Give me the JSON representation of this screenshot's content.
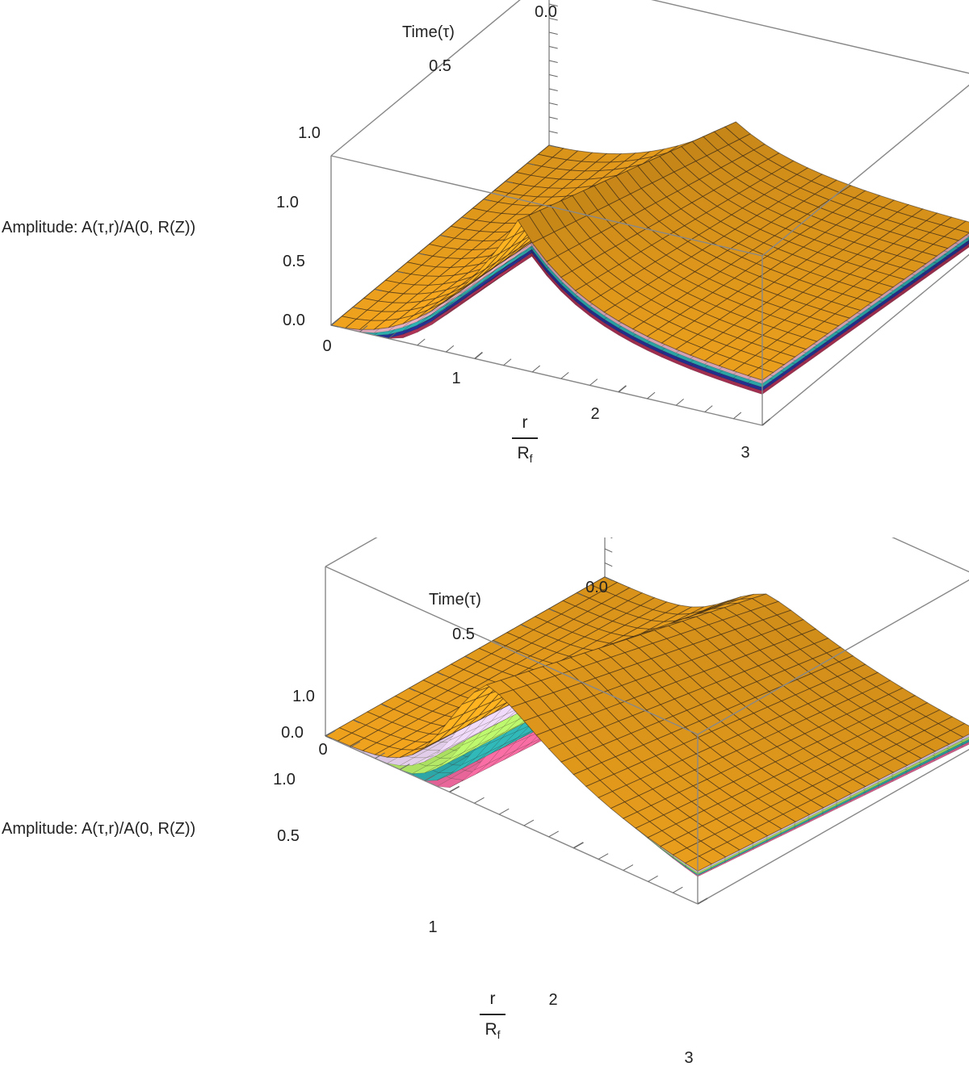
{
  "chart_data": [
    {
      "type": "surface3d",
      "ylabel": "Time(τ)",
      "zlabel": "Amplitude: A(τ,r)/A(0, R(Z))",
      "xlabel_num": "r",
      "xlabel_den": "R",
      "xlabel_den_sub": "f",
      "x_ticks": [
        "0",
        "1",
        "2",
        "3"
      ],
      "y_ticks": [
        "0.0",
        "0.5",
        "1.0"
      ],
      "z_ticks": [
        "0.0",
        "0.5",
        "1.0"
      ],
      "xlim": [
        0,
        3
      ],
      "ylim": [
        0,
        1
      ],
      "zlim": [
        0,
        1.2
      ],
      "colors": [
        "#ffad1f",
        "#e8b1c4",
        "#2fb3b3",
        "#27339a",
        "#b03257"
      ]
    },
    {
      "type": "surface3d",
      "ylabel": "Time(τ)",
      "zlabel": "Amplitude: A(τ,r)/A(0, R(Z))",
      "xlabel_num": "r",
      "xlabel_den": "R",
      "xlabel_den_sub": "f",
      "x_ticks": [
        "0",
        "1",
        "2",
        "3"
      ],
      "y_ticks": [
        "0.0",
        "0.5",
        "1.0"
      ],
      "z_ticks": [
        "0.0",
        "0.5",
        "1.0"
      ],
      "xlim": [
        0,
        3
      ],
      "ylim": [
        0,
        1
      ],
      "zlim": [
        0,
        1.2
      ],
      "colors": [
        "#ffad1f",
        "#e9d4f2",
        "#b8f06a",
        "#2fb3b3",
        "#f26aa0"
      ]
    }
  ]
}
